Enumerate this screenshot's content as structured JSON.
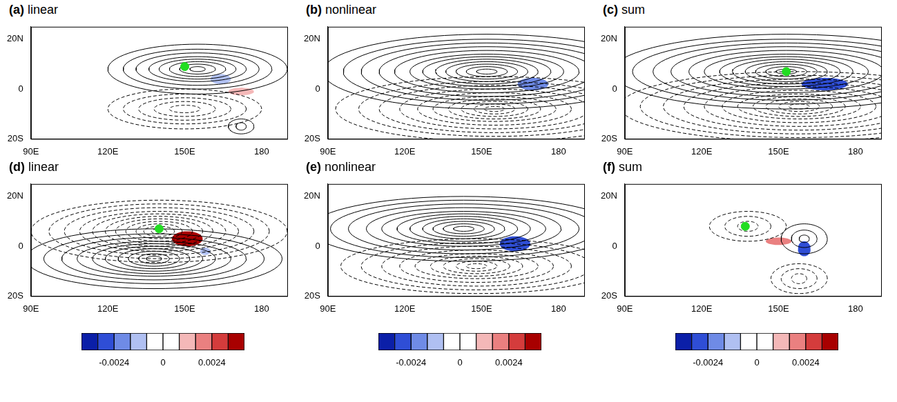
{
  "chart_data": [
    {
      "type": "contour_map",
      "label": "(a)",
      "title": "linear",
      "xlim": [
        90,
        190
      ],
      "xticks": [
        {
          "value": 90,
          "label": "90E"
        },
        {
          "value": 120,
          "label": "120E"
        },
        {
          "value": 150,
          "label": "150E"
        },
        {
          "value": 180,
          "label": "180"
        }
      ],
      "ylim": [
        -20,
        25
      ],
      "yticks": [
        {
          "value": -20,
          "label": "20S"
        },
        0,
        {
          "value": 20,
          "label": "20N"
        }
      ],
      "contours": [
        {
          "line_style": "solid",
          "cx": 155,
          "cy": 8,
          "rx": [
            3,
            7,
            11,
            15,
            19,
            24,
            29,
            35
          ],
          "ry": [
            1,
            2,
            3,
            4,
            5,
            6.5,
            8,
            10
          ]
        },
        {
          "line_style": "dashed",
          "cx": 150,
          "cy": -8,
          "rx": [
            6,
            12,
            18,
            24,
            30
          ],
          "ry": [
            1.5,
            3,
            4.5,
            6,
            8
          ]
        },
        {
          "line_style": "solid",
          "cx": 172,
          "cy": -15,
          "rx": [
            2,
            5
          ],
          "ry": [
            1.5,
            3
          ]
        }
      ],
      "shading": [
        {
          "cx": 164,
          "cy": 4,
          "rx": 4,
          "ry": 2,
          "value": -0.0016
        },
        {
          "cx": 172,
          "cy": -1,
          "rx": 5,
          "ry": 1.5,
          "value": 0.0012
        }
      ],
      "point": {
        "x": 150,
        "y": 9
      }
    },
    {
      "type": "contour_map",
      "label": "(b)",
      "title": "nonlinear",
      "xlim": [
        90,
        190
      ],
      "xticks": [
        {
          "value": 90,
          "label": "90E"
        },
        {
          "value": 120,
          "label": "120E"
        },
        {
          "value": 150,
          "label": "150E"
        },
        {
          "value": 180,
          "label": "180"
        }
      ],
      "ylim": [
        -20,
        25
      ],
      "yticks": [
        {
          "value": -20,
          "label": "20S"
        },
        0,
        {
          "value": 20,
          "label": "20N"
        }
      ],
      "contours": [
        {
          "line_style": "solid",
          "cx": 152,
          "cy": 7,
          "rx": [
            4,
            8,
            12,
            16,
            20,
            25,
            30,
            36,
            42,
            49,
            56,
            64
          ],
          "ry": [
            1,
            2,
            3,
            4,
            5,
            6,
            7,
            8.5,
            10,
            11.5,
            13,
            15
          ]
        },
        {
          "line_style": "dashed",
          "cx": 155,
          "cy": -8,
          "rx": [
            4,
            8,
            13,
            18,
            24,
            30,
            37,
            45,
            53,
            62
          ],
          "ry": [
            1,
            2,
            3,
            4,
            5,
            6.5,
            8,
            9.5,
            11,
            13
          ]
        }
      ],
      "shading": [
        {
          "cx": 170,
          "cy": 2,
          "rx": 6,
          "ry": 2.5,
          "value": -0.002
        }
      ]
    },
    {
      "type": "contour_map",
      "label": "(c)",
      "title": "sum",
      "xlim": [
        90,
        190
      ],
      "xticks": [
        {
          "value": 90,
          "label": "90E"
        },
        {
          "value": 120,
          "label": "120E"
        },
        {
          "value": 150,
          "label": "150E"
        },
        {
          "value": 180,
          "label": "180"
        }
      ],
      "ylim": [
        -20,
        25
      ],
      "yticks": [
        {
          "value": -20,
          "label": "20S"
        },
        0,
        {
          "value": 20,
          "label": "20N"
        }
      ],
      "contours": [
        {
          "line_style": "solid",
          "cx": 153,
          "cy": 7,
          "rx": [
            4,
            8,
            12,
            16,
            21,
            26,
            32,
            38,
            45,
            52,
            60,
            68
          ],
          "ry": [
            1,
            2,
            3,
            4,
            5,
            6,
            7,
            8.5,
            10,
            11.5,
            13,
            15
          ]
        },
        {
          "line_style": "dashed",
          "cx": 158,
          "cy": -7,
          "rx": [
            4,
            8,
            13,
            18,
            24,
            30,
            37,
            45,
            53,
            62,
            70
          ],
          "ry": [
            1,
            2,
            3,
            4,
            5,
            6.5,
            8,
            9.5,
            11,
            12.5,
            14
          ]
        }
      ],
      "shading": [
        {
          "cx": 168,
          "cy": 2,
          "rx": 9,
          "ry": 2.5,
          "value": -0.0028
        }
      ],
      "point": {
        "x": 153,
        "y": 7
      }
    },
    {
      "type": "contour_map",
      "label": "(d)",
      "title": "linear",
      "xlim": [
        90,
        190
      ],
      "xticks": [
        {
          "value": 90,
          "label": "90E"
        },
        {
          "value": 120,
          "label": "120E"
        },
        {
          "value": 150,
          "label": "150E"
        },
        {
          "value": 180,
          "label": "180"
        }
      ],
      "ylim": [
        -20,
        25
      ],
      "yticks": [
        {
          "value": -20,
          "label": "20S"
        },
        0,
        {
          "value": 20,
          "label": "20N"
        }
      ],
      "contours": [
        {
          "line_style": "dashed",
          "cx": 140,
          "cy": 6,
          "rx": [
            3,
            6,
            9,
            13,
            17,
            21,
            26,
            31,
            37,
            43,
            50
          ],
          "ry": [
            1,
            2,
            3,
            4,
            5,
            6,
            7,
            8,
            9.5,
            11,
            12.5
          ]
        },
        {
          "line_style": "solid",
          "cx": 138,
          "cy": -5,
          "rx": [
            3,
            6,
            10,
            14,
            19,
            24,
            30,
            36,
            43,
            50
          ],
          "ry": [
            1,
            2,
            3,
            4,
            5,
            6,
            7,
            8.5,
            10,
            12
          ]
        }
      ],
      "shading": [
        {
          "cx": 151,
          "cy": 3,
          "rx": 6,
          "ry": 3,
          "value": 0.0036
        },
        {
          "cx": 158,
          "cy": -2,
          "rx": 2,
          "ry": 1.5,
          "value": -0.0012
        }
      ],
      "point": {
        "x": 140,
        "y": 7
      }
    },
    {
      "type": "contour_map",
      "label": "(e)",
      "title": "nonlinear",
      "xlim": [
        90,
        190
      ],
      "xticks": [
        {
          "value": 90,
          "label": "90E"
        },
        {
          "value": 120,
          "label": "120E"
        },
        {
          "value": 150,
          "label": "150E"
        },
        {
          "value": 180,
          "label": "180"
        }
      ],
      "ylim": [
        -20,
        25
      ],
      "yticks": [
        {
          "value": -20,
          "label": "20S"
        },
        0,
        {
          "value": 20,
          "label": "20N"
        }
      ],
      "contours": [
        {
          "line_style": "solid",
          "cx": 143,
          "cy": 7,
          "rx": [
            4,
            8,
            12,
            16,
            21,
            26,
            32,
            38,
            45,
            52,
            60
          ],
          "ry": [
            1,
            2,
            3,
            4,
            5,
            6,
            7,
            8.5,
            10,
            11.5,
            13
          ]
        },
        {
          "line_style": "dashed",
          "cx": 148,
          "cy": -8,
          "rx": [
            4,
            8,
            13,
            18,
            24,
            30,
            37,
            45,
            53
          ],
          "ry": [
            1,
            2,
            3,
            4,
            5,
            6.5,
            8,
            9.5,
            11
          ]
        }
      ],
      "shading": [
        {
          "cx": 163,
          "cy": 1,
          "rx": 6,
          "ry": 3,
          "value": -0.0028
        }
      ]
    },
    {
      "type": "contour_map",
      "label": "(f)",
      "title": "sum",
      "xlim": [
        90,
        190
      ],
      "xticks": [
        {
          "value": 90,
          "label": "90E"
        },
        {
          "value": 120,
          "label": "120E"
        },
        {
          "value": 150,
          "label": "150E"
        },
        {
          "value": 180,
          "label": "180"
        }
      ],
      "ylim": [
        -20,
        25
      ],
      "yticks": [
        {
          "value": -20,
          "label": "20S"
        },
        0,
        {
          "value": 20,
          "label": "20N"
        }
      ],
      "contours": [
        {
          "line_style": "dashed",
          "cx": 138,
          "cy": 8,
          "rx": [
            4,
            9,
            15
          ],
          "ry": [
            2,
            4,
            6
          ]
        },
        {
          "line_style": "solid",
          "cx": 160,
          "cy": 3,
          "rx": [
            2,
            5,
            9
          ],
          "ry": [
            1.5,
            3.5,
            6
          ]
        },
        {
          "line_style": "dashed",
          "cx": 158,
          "cy": -13,
          "rx": [
            3,
            7,
            11
          ],
          "ry": [
            2,
            4,
            6
          ]
        }
      ],
      "shading": [
        {
          "cx": 150,
          "cy": 2,
          "rx": 5,
          "ry": 1.5,
          "value": 0.0016
        },
        {
          "cx": 160,
          "cy": -1,
          "rx": 2.5,
          "ry": 3,
          "value": -0.0028
        }
      ],
      "point": {
        "x": 137,
        "y": 8
      }
    }
  ],
  "colorbar": {
    "range": [
      -0.004,
      0.004
    ],
    "levels": [
      -0.004,
      -0.0032,
      -0.0024,
      -0.0016,
      -0.0008,
      0,
      0.0008,
      0.0016,
      0.0024,
      0.0032,
      0.004
    ],
    "colors": [
      "#0b1fa8",
      "#2f4ed6",
      "#6f8be6",
      "#b0c0f2",
      "#ffffff",
      "#ffffff",
      "#f4b8b8",
      "#ea8080",
      "#d43c3c",
      "#a80000"
    ],
    "ticks": [
      -0.0024,
      0,
      0.0024
    ]
  }
}
